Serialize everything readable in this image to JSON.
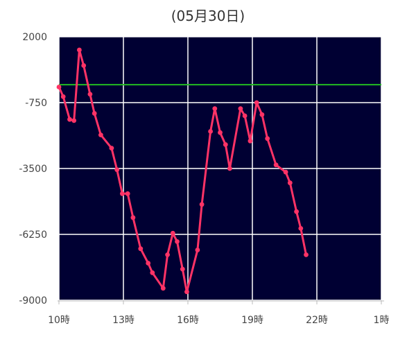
{
  "chart_data": {
    "type": "line",
    "title": "(05月30日)",
    "xlabel": "",
    "ylabel": "",
    "x_ticks": [
      "10時",
      "13時",
      "16時",
      "19時",
      "22時",
      "1時"
    ],
    "y_ticks": [
      "2000",
      "-750",
      "-3500",
      "-6250",
      "-9000"
    ],
    "ylim": [
      -9000,
      2000
    ],
    "xlim_hours": [
      10,
      25
    ],
    "grid": true,
    "reference_line": {
      "value": 0,
      "color": "#22bb22"
    },
    "colors": {
      "plot_background": "#000033",
      "series": "#ff3366",
      "grid": "#ffffff"
    },
    "series": [
      {
        "x": [
          10.0,
          10.2,
          10.5,
          10.7,
          10.95,
          11.15,
          11.45,
          11.65,
          11.95,
          12.45,
          12.7,
          12.95,
          13.2,
          13.45,
          13.8,
          14.15,
          14.35,
          14.85,
          15.05,
          15.3,
          15.5,
          15.75,
          15.95,
          16.45,
          16.65,
          17.05,
          17.25,
          17.5,
          17.75,
          17.95,
          18.45,
          18.65,
          18.9,
          19.2,
          19.45,
          19.7,
          20.1,
          20.55,
          20.75,
          21.05,
          21.25,
          21.5
        ],
        "y": [
          -100,
          -500,
          -1450,
          -1500,
          1450,
          800,
          -400,
          -1200,
          -2100,
          -2650,
          -3550,
          -4550,
          -4550,
          -5550,
          -6850,
          -7450,
          -7850,
          -8500,
          -7100,
          -6200,
          -6550,
          -7700,
          -8650,
          -6900,
          -5000,
          -1950,
          -1000,
          -2000,
          -2500,
          -3500,
          -1000,
          -1300,
          -2350,
          -750,
          -1250,
          -2250,
          -3350,
          -3650,
          -4100,
          -5300,
          -6000,
          -7100
        ]
      }
    ]
  }
}
